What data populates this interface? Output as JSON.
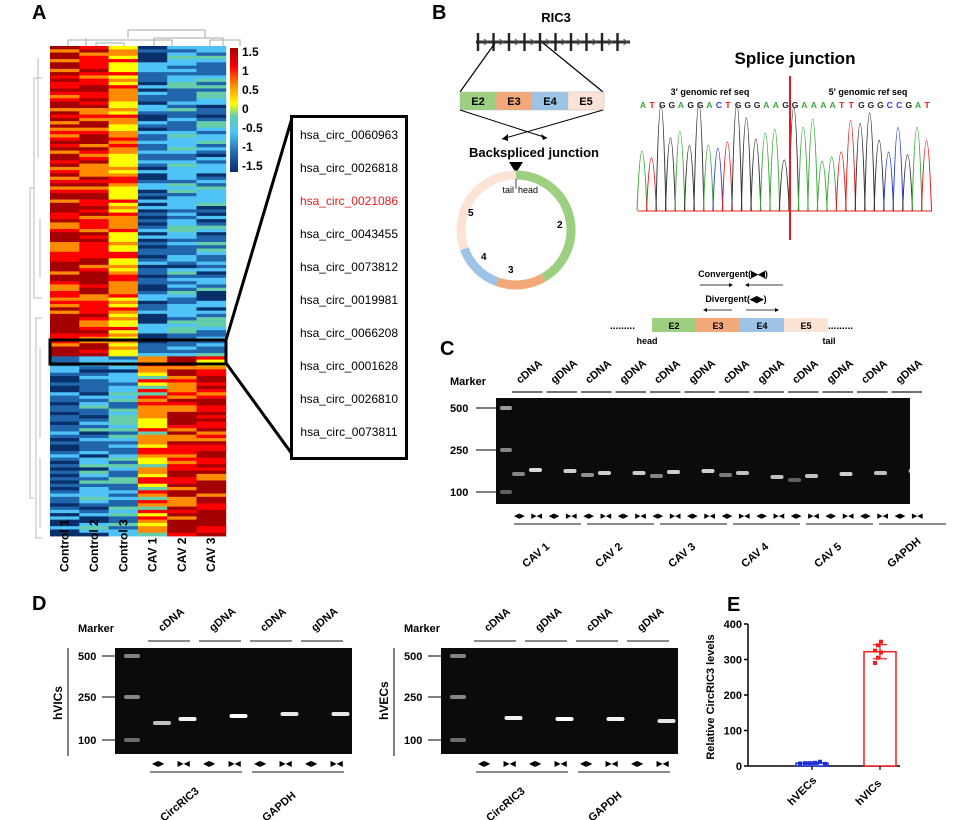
{
  "panels": {
    "A": {
      "letter": "A",
      "samples": [
        "Control 1",
        "Control 2",
        "Control 3",
        "CAV 1",
        "CAV 2",
        "CAV 3"
      ],
      "colorbar": {
        "ticks": [
          "1.5",
          "1",
          "0.5",
          "0",
          "-0.5",
          "-1",
          "-1.5"
        ],
        "min": -1.5,
        "max": 1.5,
        "colors": [
          "#08306b",
          "#2166ac",
          "#4fc3f7",
          "#66cdaa",
          "#ffff00",
          "#ff8c00",
          "#ff0000",
          "#a50000"
        ]
      },
      "callout_list": [
        {
          "label": "hsa_circ_0060963",
          "highlight": false
        },
        {
          "label": "hsa_circ_0026818",
          "highlight": false
        },
        {
          "label": "hsa_circ_0021086",
          "highlight": true
        },
        {
          "label": "hsa_circ_0043455",
          "highlight": false
        },
        {
          "label": "hsa_circ_0073812",
          "highlight": false
        },
        {
          "label": "hsa_circ_0019981",
          "highlight": false
        },
        {
          "label": "hsa_circ_0066208",
          "highlight": false
        },
        {
          "label": "hsa_circ_0001628",
          "highlight": false
        },
        {
          "label": "hsa_circ_0026810",
          "highlight": false
        },
        {
          "label": "hsa_circ_0073811",
          "highlight": false
        }
      ],
      "highlight_color": "#e8191a"
    },
    "B": {
      "letter": "B",
      "gene": "RIC3",
      "exons": [
        "E2",
        "E3",
        "E4",
        "E5"
      ],
      "exon_colors": [
        "#9ccf80",
        "#f2a878",
        "#9dc3e6",
        "#fbe3d6"
      ],
      "backsplice_label": "Backspliced junction",
      "circle_labels": {
        "tail": "tail",
        "head": "head",
        "segments": [
          "2",
          "3",
          "4",
          "5"
        ]
      },
      "splice_title": "Splice junction",
      "ref3": "3′ genomic ref seq",
      "ref5": "5′ genomic ref seq",
      "sequence": "ATGGAGGACTGGGAAGGAAAATTGGGCCGAT",
      "base_colors": {
        "A": "#3aa83a",
        "T": "#e8191a",
        "G": "#222222",
        "C": "#2a3fd1"
      },
      "convergent_label": "Convergent(▶◀)",
      "divergent_label": "Divergent(◀▶)",
      "linear_head": "head",
      "linear_tail": "tail",
      "dots": "........."
    },
    "C": {
      "letter": "C",
      "marker_label": "Marker",
      "size_ticks": [
        "500",
        "250",
        "100"
      ],
      "lane_labels": [
        "cDNA",
        "gDNA",
        "cDNA",
        "gDNA",
        "cDNA",
        "gDNA",
        "cDNA",
        "gDNA",
        "cDNA",
        "gDNA",
        "cDNA",
        "gDNA"
      ],
      "groups": [
        "CAV 1",
        "CAV 2",
        "CAV 3",
        "CAV 4",
        "CAV 5",
        "GAPDH"
      ],
      "primer_div": "◀▶",
      "primer_conv": "▶◀"
    },
    "D": {
      "letter": "D",
      "marker_label": "Marker",
      "size_ticks": [
        "500",
        "250",
        "100"
      ],
      "lane_labels": [
        "cDNA",
        "gDNA",
        "cDNA",
        "gDNA"
      ],
      "gels": [
        {
          "cell": "hVICs",
          "groups": [
            "CircRIC3",
            "GAPDH"
          ]
        },
        {
          "cell": "hVECs",
          "groups": [
            "CircRIC3",
            "GAPDH"
          ]
        }
      ],
      "primer_div": "◀▶",
      "primer_conv": "▶◀"
    },
    "E": {
      "letter": "E"
    }
  },
  "chart_data": {
    "type": "bar",
    "title": "",
    "xlabel": "",
    "ylabel": "Relative CircRIC3 levels",
    "categories": [
      "hVECs",
      "hVICs"
    ],
    "values": [
      8,
      322
    ],
    "errors": [
      3,
      20
    ],
    "points": [
      [
        7,
        8,
        8,
        9,
        12,
        6
      ],
      [
        290,
        305,
        320,
        325,
        340,
        350
      ]
    ],
    "colors": [
      "#1f2ed6",
      "#f21c1c"
    ],
    "ylim": [
      0,
      400
    ],
    "yticks": [
      0,
      100,
      200,
      300,
      400
    ],
    "grid": false
  }
}
